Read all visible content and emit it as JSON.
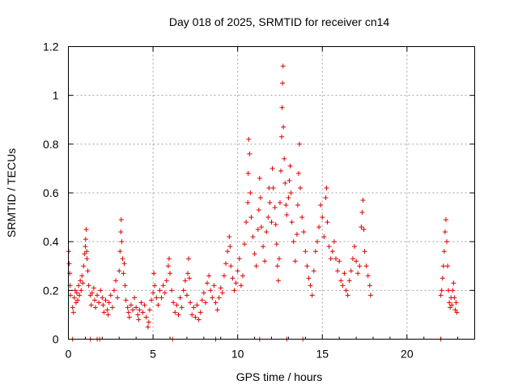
{
  "chart_data": {
    "type": "scatter",
    "title": "Day 018 of 2025, SRMTID for receiver cn14",
    "xlabel": "GPS time / hours",
    "ylabel": "SRMTID / TECUs",
    "xlim": [
      0,
      24
    ],
    "ylim": [
      0,
      1.2
    ],
    "x_ticks": [
      0,
      5,
      10,
      15,
      20
    ],
    "x_tick_labels": [
      "0",
      "5",
      "10",
      "15",
      "20"
    ],
    "y_ticks": [
      0,
      0.2,
      0.4,
      0.6,
      0.8,
      1.0,
      1.2
    ],
    "y_tick_labels": [
      "0",
      "0.2",
      "0.4",
      "0.6",
      "0.8",
      "1",
      "1.2"
    ],
    "grid": true,
    "marker": "plus",
    "color": "#e00000",
    "series": [
      {
        "name": "cn14",
        "points": [
          [
            0.02,
            0.36
          ],
          [
            0.05,
            0.31
          ],
          [
            0.08,
            0.27
          ],
          [
            0.1,
            0.22
          ],
          [
            0.12,
            0.18
          ],
          [
            0.25,
            0.13
          ],
          [
            0.3,
            0.11
          ],
          [
            0.35,
            0.17
          ],
          [
            0.4,
            0.2
          ],
          [
            0.45,
            0.15
          ],
          [
            0.5,
            0.19
          ],
          [
            0.55,
            0.16
          ],
          [
            0.6,
            0.22
          ],
          [
            0.65,
            0.18
          ],
          [
            0.7,
            0.24
          ],
          [
            0.75,
            0.2
          ],
          [
            0.8,
            0.26
          ],
          [
            0.85,
            0.23
          ],
          [
            0.9,
            0.3
          ],
          [
            0.95,
            0.35
          ],
          [
            1.0,
            0.38
          ],
          [
            1.02,
            0.41
          ],
          [
            1.05,
            0.45
          ],
          [
            1.08,
            0.36
          ],
          [
            1.1,
            0.33
          ],
          [
            1.15,
            0.28
          ],
          [
            1.2,
            0.22
          ],
          [
            1.3,
            0.18
          ],
          [
            1.35,
            0.14
          ],
          [
            1.4,
            0.19
          ],
          [
            1.5,
            0.21
          ],
          [
            1.55,
            0.16
          ],
          [
            1.6,
            0.13
          ],
          [
            1.7,
            0.18
          ],
          [
            1.8,
            0.15
          ],
          [
            1.9,
            0.2
          ],
          [
            2.0,
            0.17
          ],
          [
            2.05,
            0.14
          ],
          [
            2.1,
            0.11
          ],
          [
            2.2,
            0.16
          ],
          [
            2.3,
            0.12
          ],
          [
            2.35,
            0.1
          ],
          [
            2.4,
            0.15
          ],
          [
            2.5,
            0.18
          ],
          [
            2.6,
            0.13
          ],
          [
            2.7,
            0.2
          ],
          [
            2.8,
            0.24
          ],
          [
            2.9,
            0.17
          ],
          [
            3.0,
            0.28
          ],
          [
            3.05,
            0.36
          ],
          [
            3.1,
            0.44
          ],
          [
            3.12,
            0.49
          ],
          [
            3.15,
            0.4
          ],
          [
            3.2,
            0.33
          ],
          [
            3.25,
            0.27
          ],
          [
            3.3,
            0.31
          ],
          [
            3.35,
            0.22
          ],
          [
            3.4,
            0.16
          ],
          [
            3.5,
            0.13
          ],
          [
            3.55,
            0.11
          ],
          [
            3.6,
            0.09
          ],
          [
            3.7,
            0.14
          ],
          [
            3.8,
            0.12
          ],
          [
            3.9,
            0.17
          ],
          [
            4.0,
            0.13
          ],
          [
            4.1,
            0.1
          ],
          [
            4.15,
            0.08
          ],
          [
            4.2,
            0.12
          ],
          [
            4.3,
            0.15
          ],
          [
            4.4,
            0.11
          ],
          [
            4.5,
            0.14
          ],
          [
            4.6,
            0.09
          ],
          [
            4.7,
            0.05
          ],
          [
            4.75,
            0.07
          ],
          [
            4.8,
            0.12
          ],
          [
            4.9,
            0.16
          ],
          [
            5.0,
            0.19
          ],
          [
            5.05,
            0.27
          ],
          [
            5.1,
            0.22
          ],
          [
            5.2,
            0.17
          ],
          [
            5.3,
            0.14
          ],
          [
            5.4,
            0.2
          ],
          [
            5.5,
            0.17
          ],
          [
            5.6,
            0.22
          ],
          [
            5.7,
            0.19
          ],
          [
            5.8,
            0.24
          ],
          [
            5.9,
            0.3
          ],
          [
            5.95,
            0.33
          ],
          [
            6.0,
            0.27
          ],
          [
            6.1,
            0.2
          ],
          [
            6.2,
            0.15
          ],
          [
            6.3,
            0.11
          ],
          [
            6.4,
            0.14
          ],
          [
            6.5,
            0.1
          ],
          [
            6.6,
            0.17
          ],
          [
            6.7,
            0.13
          ],
          [
            6.8,
            0.2
          ],
          [
            6.9,
            0.24
          ],
          [
            7.0,
            0.18
          ],
          [
            7.05,
            0.27
          ],
          [
            7.1,
            0.33
          ],
          [
            7.15,
            0.25
          ],
          [
            7.2,
            0.15
          ],
          [
            7.3,
            0.1
          ],
          [
            7.4,
            0.13
          ],
          [
            7.5,
            0.09
          ],
          [
            7.6,
            0.14
          ],
          [
            7.7,
            0.08
          ],
          [
            7.8,
            0.11
          ],
          [
            7.9,
            0.16
          ],
          [
            8.0,
            0.19
          ],
          [
            8.1,
            0.15
          ],
          [
            8.2,
            0.23
          ],
          [
            8.3,
            0.26
          ],
          [
            8.4,
            0.2
          ],
          [
            8.5,
            0.17
          ],
          [
            8.6,
            0.22
          ],
          [
            8.7,
            0.15
          ],
          [
            8.8,
            0.12
          ],
          [
            8.9,
            0.17
          ],
          [
            9.0,
            0.21
          ],
          [
            9.1,
            0.19
          ],
          [
            9.2,
            0.26
          ],
          [
            9.3,
            0.31
          ],
          [
            9.4,
            0.36
          ],
          [
            9.5,
            0.42
          ],
          [
            9.55,
            0.38
          ],
          [
            9.6,
            0.3
          ],
          [
            9.7,
            0.25
          ],
          [
            9.8,
            0.2
          ],
          [
            9.9,
            0.23
          ],
          [
            10.0,
            0.28
          ],
          [
            10.1,
            0.33
          ],
          [
            10.2,
            0.22
          ],
          [
            10.3,
            0.26
          ],
          [
            10.4,
            0.39
          ],
          [
            10.5,
            0.48
          ],
          [
            10.6,
            0.56
          ],
          [
            10.62,
            0.68
          ],
          [
            10.65,
            0.82
          ],
          [
            10.7,
            0.76
          ],
          [
            10.75,
            0.6
          ],
          [
            10.8,
            0.5
          ],
          [
            10.9,
            0.42
          ],
          [
            11.0,
            0.35
          ],
          [
            11.1,
            0.3
          ],
          [
            11.2,
            0.45
          ],
          [
            11.25,
            0.53
          ],
          [
            11.3,
            0.66
          ],
          [
            11.35,
            0.58
          ],
          [
            11.4,
            0.46
          ],
          [
            11.5,
            0.38
          ],
          [
            11.6,
            0.32
          ],
          [
            11.7,
            0.44
          ],
          [
            11.8,
            0.5
          ],
          [
            11.85,
            0.62
          ],
          [
            11.9,
            0.56
          ],
          [
            12.0,
            0.48
          ],
          [
            12.05,
            0.7
          ],
          [
            12.1,
            0.62
          ],
          [
            12.2,
            0.54
          ],
          [
            12.25,
            0.47
          ],
          [
            12.3,
            0.39
          ],
          [
            12.35,
            0.3
          ],
          [
            12.4,
            0.24
          ],
          [
            12.45,
            0.33
          ],
          [
            12.5,
            0.56
          ],
          [
            12.55,
            0.69
          ],
          [
            12.6,
            0.83
          ],
          [
            12.62,
            0.95
          ],
          [
            12.65,
            1.05
          ],
          [
            12.68,
            1.12
          ],
          [
            12.7,
            0.87
          ],
          [
            12.75,
            0.74
          ],
          [
            12.8,
            0.64
          ],
          [
            12.85,
            0.55
          ],
          [
            12.9,
            0.51
          ],
          [
            13.0,
            0.58
          ],
          [
            13.05,
            0.65
          ],
          [
            13.1,
            0.71
          ],
          [
            13.15,
            0.6
          ],
          [
            13.2,
            0.48
          ],
          [
            13.3,
            0.4
          ],
          [
            13.4,
            0.32
          ],
          [
            13.5,
            0.43
          ],
          [
            13.55,
            0.55
          ],
          [
            13.6,
            0.68
          ],
          [
            13.65,
            0.8
          ],
          [
            13.7,
            0.62
          ],
          [
            13.8,
            0.5
          ],
          [
            13.9,
            0.44
          ],
          [
            14.0,
            0.36
          ],
          [
            14.1,
            0.3
          ],
          [
            14.2,
            0.25
          ],
          [
            14.3,
            0.22
          ],
          [
            14.4,
            0.18
          ],
          [
            14.5,
            0.28
          ],
          [
            14.6,
            0.36
          ],
          [
            14.7,
            0.4
          ],
          [
            14.8,
            0.46
          ],
          [
            14.9,
            0.55
          ],
          [
            15.0,
            0.5
          ],
          [
            15.1,
            0.42
          ],
          [
            15.2,
            0.58
          ],
          [
            15.25,
            0.62
          ],
          [
            15.3,
            0.48
          ],
          [
            15.4,
            0.38
          ],
          [
            15.5,
            0.33
          ],
          [
            15.6,
            0.36
          ],
          [
            15.7,
            0.4
          ],
          [
            15.8,
            0.33
          ],
          [
            15.9,
            0.28
          ],
          [
            16.0,
            0.32
          ],
          [
            16.1,
            0.24
          ],
          [
            16.2,
            0.22
          ],
          [
            16.3,
            0.27
          ],
          [
            16.4,
            0.2
          ],
          [
            16.5,
            0.18
          ],
          [
            16.6,
            0.24
          ],
          [
            16.7,
            0.28
          ],
          [
            16.8,
            0.33
          ],
          [
            16.9,
            0.38
          ],
          [
            17.0,
            0.32
          ],
          [
            17.1,
            0.27
          ],
          [
            17.2,
            0.3
          ],
          [
            17.3,
            0.46
          ],
          [
            17.35,
            0.52
          ],
          [
            17.4,
            0.57
          ],
          [
            17.45,
            0.45
          ],
          [
            17.5,
            0.36
          ],
          [
            17.6,
            0.3
          ],
          [
            17.7,
            0.26
          ],
          [
            17.8,
            0.22
          ],
          [
            17.85,
            0.18
          ],
          [
            22.0,
            0.18
          ],
          [
            22.05,
            0.2
          ],
          [
            22.1,
            0.25
          ],
          [
            22.15,
            0.3
          ],
          [
            22.2,
            0.36
          ],
          [
            22.25,
            0.44
          ],
          [
            22.3,
            0.49
          ],
          [
            22.35,
            0.4
          ],
          [
            22.4,
            0.3
          ],
          [
            22.45,
            0.2
          ],
          [
            22.5,
            0.15
          ],
          [
            22.55,
            0.13
          ],
          [
            22.6,
            0.17
          ],
          [
            22.65,
            0.14
          ],
          [
            22.7,
            0.2
          ],
          [
            22.75,
            0.23
          ],
          [
            22.8,
            0.17
          ],
          [
            22.85,
            0.12
          ],
          [
            22.9,
            0.15
          ],
          [
            22.95,
            0.11
          ]
        ],
        "baseline_points_x": [
          0.25,
          1.3,
          1.7,
          1.85,
          6.15,
          8.7,
          11.3,
          12.9,
          13.85,
          22.0
        ]
      }
    ]
  }
}
